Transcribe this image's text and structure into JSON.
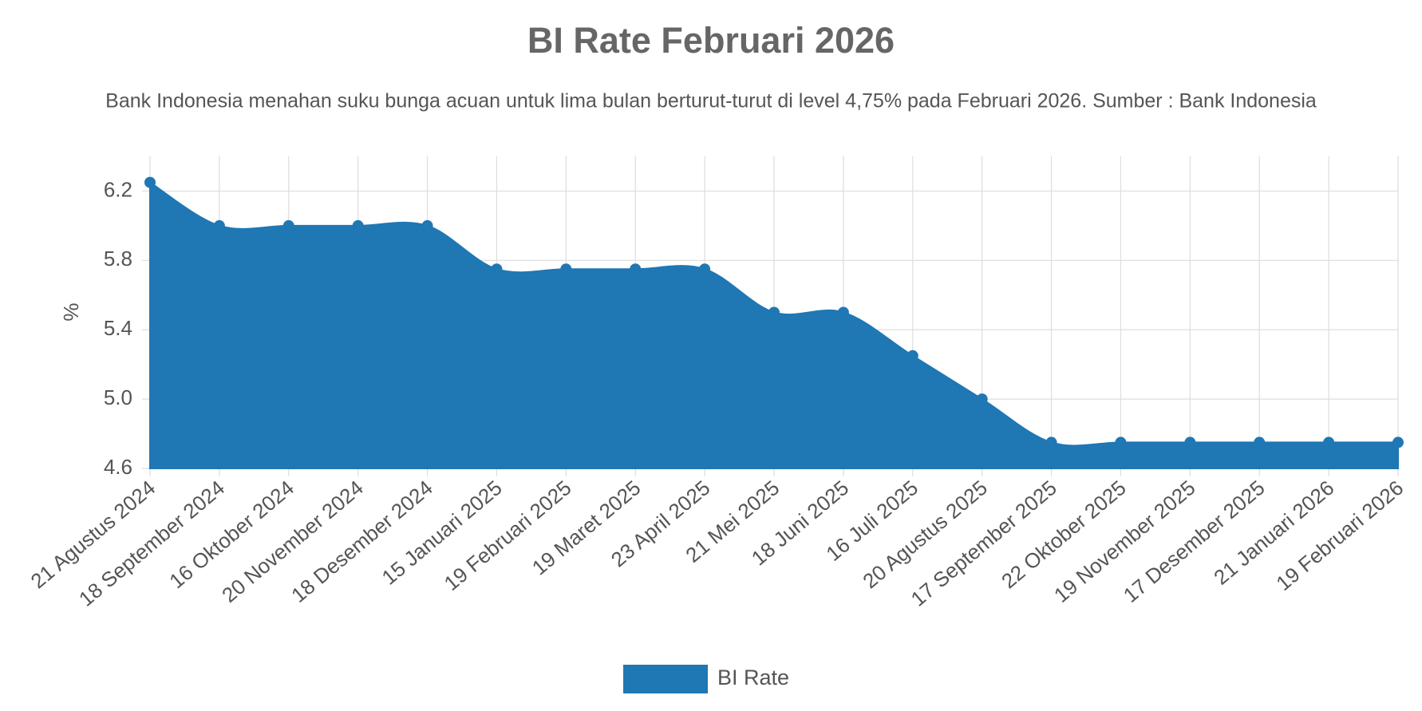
{
  "chart_data": {
    "type": "area",
    "title": "BI Rate Februari 2026",
    "subtitle": "Bank Indonesia menahan suku bunga acuan untuk lima bulan berturut-turut di level 4,75% pada Februari 2026. Sumber : Bank Indonesia",
    "y_label": "%",
    "categories": [
      "21 Agustus 2024",
      "18 September 2024",
      "16 Oktober 2024",
      "20 November 2024",
      "18 Desember 2024",
      "15 Januari 2025",
      "19 Februari 2025",
      "19 Maret 2025",
      "23 April 2025",
      "21 Mei 2025",
      "18 Juni 2025",
      "16 Juli 2025",
      "20 Agustus 2025",
      "17 September 2025",
      "22 Oktober 2025",
      "19 November 2025",
      "17 Desember 2025",
      "21 Januari 2026",
      "19 Februari 2026"
    ],
    "series": [
      {
        "name": "BI Rate",
        "color": "#1f77b4",
        "values": [
          6.25,
          6.0,
          6.0,
          6.0,
          6.0,
          5.75,
          5.75,
          5.75,
          5.75,
          5.5,
          5.5,
          5.25,
          5.0,
          4.75,
          4.75,
          4.75,
          4.75,
          4.75,
          4.75
        ]
      }
    ],
    "ylim": [
      4.6,
      6.4
    ],
    "yticks": [
      4.6,
      {
        "value": 5,
        "label": "5.0"
      },
      5.4,
      5.8,
      6.2
    ],
    "grid": true,
    "legend": "bottom"
  }
}
